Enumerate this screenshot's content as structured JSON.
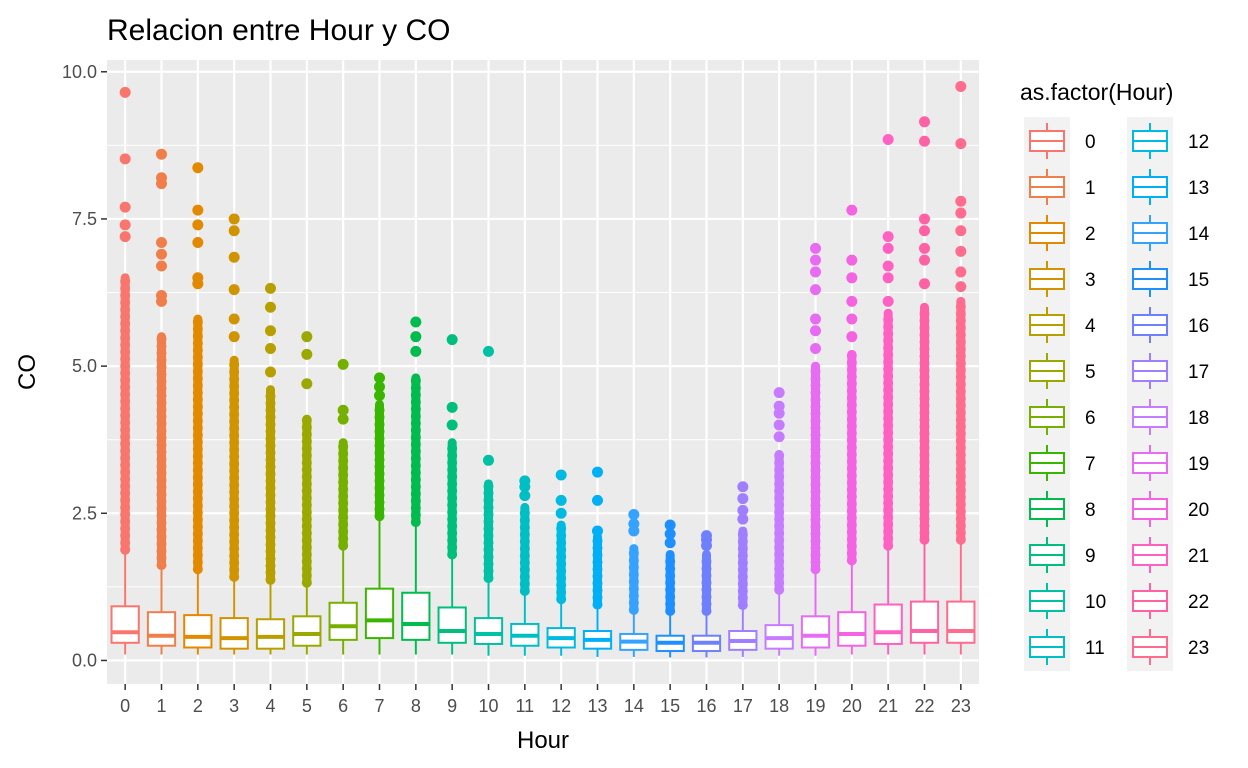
{
  "chart_data": {
    "type": "boxplot",
    "title": "Relacion entre Hour y CO",
    "xlabel": "Hour",
    "ylabel": "CO",
    "ylim": [
      -0.4,
      10.2
    ],
    "yticks": [
      "0.0",
      "2.5",
      "5.0",
      "7.5",
      "10.0"
    ],
    "ytick_values": [
      0,
      2.5,
      5,
      7.5,
      10
    ],
    "grid": true,
    "legend_title": "as.factor(Hour)",
    "legend_position": "right",
    "categories": [
      "0",
      "1",
      "2",
      "3",
      "4",
      "5",
      "6",
      "7",
      "8",
      "9",
      "10",
      "11",
      "12",
      "13",
      "14",
      "15",
      "16",
      "17",
      "18",
      "19",
      "20",
      "21",
      "22",
      "23"
    ],
    "colors": [
      "#F8766D",
      "#F07E4B",
      "#E38900",
      "#D09400",
      "#B79F00",
      "#9AA800",
      "#75AF00",
      "#39B600",
      "#00BB4E",
      "#00BF7D",
      "#00C1A3",
      "#00BFC4",
      "#00BAE0",
      "#00B0F6",
      "#35A2FF",
      "#1E8FFF",
      "#6F80FF",
      "#9F7FFF",
      "#C77CFF",
      "#E76BF3",
      "#F464E2",
      "#FF61C3",
      "#FF62A4",
      "#FF6C8E"
    ],
    "series": [
      {
        "min": 0.1,
        "q1": 0.3,
        "median": 0.48,
        "q3": 0.92,
        "whisker_high": 1.85,
        "outlier_low": 1.88,
        "outlier_high": 6.5,
        "extreme_outliers": [
          7.2,
          7.4,
          7.7,
          8.52,
          9.65
        ]
      },
      {
        "min": 0.1,
        "q1": 0.25,
        "median": 0.42,
        "q3": 0.82,
        "whisker_high": 1.58,
        "outlier_low": 1.62,
        "outlier_high": 5.5,
        "extreme_outliers": [
          6.1,
          6.2,
          6.7,
          6.9,
          7.1,
          8.1,
          8.2,
          8.6
        ]
      },
      {
        "min": 0.1,
        "q1": 0.22,
        "median": 0.4,
        "q3": 0.77,
        "whisker_high": 1.52,
        "outlier_low": 1.55,
        "outlier_high": 5.8,
        "extreme_outliers": [
          6.4,
          6.5,
          7.1,
          7.4,
          7.65,
          8.37
        ]
      },
      {
        "min": 0.1,
        "q1": 0.2,
        "median": 0.38,
        "q3": 0.72,
        "whisker_high": 1.38,
        "outlier_low": 1.42,
        "outlier_high": 5.1,
        "extreme_outliers": [
          5.5,
          5.8,
          6.3,
          6.85,
          7.3,
          7.5
        ]
      },
      {
        "min": 0.1,
        "q1": 0.2,
        "median": 0.4,
        "q3": 0.7,
        "whisker_high": 1.33,
        "outlier_low": 1.37,
        "outlier_high": 4.6,
        "extreme_outliers": [
          4.9,
          5.3,
          5.6,
          6.0,
          6.32
        ]
      },
      {
        "min": 0.1,
        "q1": 0.25,
        "median": 0.45,
        "q3": 0.75,
        "whisker_high": 1.28,
        "outlier_low": 1.32,
        "outlier_high": 4.1,
        "extreme_outliers": [
          4.7,
          5.2,
          5.5
        ]
      },
      {
        "min": 0.1,
        "q1": 0.35,
        "median": 0.58,
        "q3": 0.98,
        "whisker_high": 1.9,
        "outlier_low": 1.95,
        "outlier_high": 3.7,
        "extreme_outliers": [
          4.1,
          4.25,
          5.03
        ]
      },
      {
        "min": 0.1,
        "q1": 0.38,
        "median": 0.68,
        "q3": 1.22,
        "whisker_high": 2.4,
        "outlier_low": 2.45,
        "outlier_high": 4.35,
        "extreme_outliers": [
          4.5,
          4.65,
          4.8
        ]
      },
      {
        "min": 0.1,
        "q1": 0.35,
        "median": 0.62,
        "q3": 1.15,
        "whisker_high": 2.3,
        "outlier_low": 2.35,
        "outlier_high": 4.8,
        "extreme_outliers": [
          5.25,
          5.5,
          5.75
        ]
      },
      {
        "min": 0.1,
        "q1": 0.3,
        "median": 0.5,
        "q3": 0.9,
        "whisker_high": 1.75,
        "outlier_low": 1.8,
        "outlier_high": 3.7,
        "extreme_outliers": [
          4.0,
          4.3,
          5.45
        ]
      },
      {
        "min": 0.08,
        "q1": 0.28,
        "median": 0.45,
        "q3": 0.72,
        "whisker_high": 1.35,
        "outlier_low": 1.4,
        "outlier_high": 3.0,
        "extreme_outliers": [
          3.4,
          5.25
        ]
      },
      {
        "min": 0.08,
        "q1": 0.25,
        "median": 0.42,
        "q3": 0.62,
        "whisker_high": 1.15,
        "outlier_low": 1.18,
        "outlier_high": 2.6,
        "extreme_outliers": [
          2.8,
          2.95,
          3.05
        ]
      },
      {
        "min": 0.08,
        "q1": 0.22,
        "median": 0.38,
        "q3": 0.55,
        "whisker_high": 1.0,
        "outlier_low": 1.04,
        "outlier_high": 2.3,
        "extreme_outliers": [
          2.5,
          2.72,
          3.15
        ]
      },
      {
        "min": 0.06,
        "q1": 0.2,
        "median": 0.35,
        "q3": 0.5,
        "whisker_high": 0.9,
        "outlier_low": 0.95,
        "outlier_high": 2.1,
        "extreme_outliers": [
          2.2,
          2.72,
          3.2
        ]
      },
      {
        "min": 0.06,
        "q1": 0.18,
        "median": 0.32,
        "q3": 0.45,
        "whisker_high": 0.82,
        "outlier_low": 0.86,
        "outlier_high": 1.9,
        "extreme_outliers": [
          2.2,
          2.32,
          2.48
        ]
      },
      {
        "min": 0.05,
        "q1": 0.16,
        "median": 0.3,
        "q3": 0.42,
        "whisker_high": 0.8,
        "outlier_low": 0.84,
        "outlier_high": 1.8,
        "extreme_outliers": [
          2.0,
          2.15,
          2.3
        ]
      },
      {
        "min": 0.05,
        "q1": 0.16,
        "median": 0.3,
        "q3": 0.42,
        "whisker_high": 0.8,
        "outlier_low": 0.84,
        "outlier_high": 1.8,
        "extreme_outliers": [
          1.95,
          2.05,
          2.12
        ]
      },
      {
        "min": 0.06,
        "q1": 0.18,
        "median": 0.33,
        "q3": 0.5,
        "whisker_high": 0.9,
        "outlier_low": 0.94,
        "outlier_high": 2.2,
        "extreme_outliers": [
          2.4,
          2.55,
          2.75,
          2.95
        ]
      },
      {
        "min": 0.08,
        "q1": 0.2,
        "median": 0.38,
        "q3": 0.6,
        "whisker_high": 1.15,
        "outlier_low": 1.2,
        "outlier_high": 3.5,
        "extreme_outliers": [
          3.8,
          4.0,
          4.2,
          4.32,
          4.55
        ]
      },
      {
        "min": 0.08,
        "q1": 0.22,
        "median": 0.42,
        "q3": 0.75,
        "whisker_high": 1.5,
        "outlier_low": 1.55,
        "outlier_high": 5.0,
        "extreme_outliers": [
          5.3,
          5.6,
          5.8,
          6.3,
          6.6,
          6.8,
          7.0
        ]
      },
      {
        "min": 0.1,
        "q1": 0.25,
        "median": 0.45,
        "q3": 0.82,
        "whisker_high": 1.65,
        "outlier_low": 1.7,
        "outlier_high": 5.2,
        "extreme_outliers": [
          5.5,
          5.8,
          6.1,
          6.5,
          6.8,
          7.65
        ]
      },
      {
        "min": 0.1,
        "q1": 0.28,
        "median": 0.48,
        "q3": 0.95,
        "whisker_high": 1.9,
        "outlier_low": 1.95,
        "outlier_high": 5.9,
        "extreme_outliers": [
          6.1,
          6.5,
          6.7,
          7.0,
          7.2,
          8.85
        ]
      },
      {
        "min": 0.1,
        "q1": 0.3,
        "median": 0.5,
        "q3": 1.0,
        "whisker_high": 2.0,
        "outlier_low": 2.05,
        "outlier_high": 6.0,
        "extreme_outliers": [
          6.4,
          6.8,
          7.0,
          7.3,
          7.5,
          8.82,
          9.15
        ]
      },
      {
        "min": 0.1,
        "q1": 0.3,
        "median": 0.5,
        "q3": 1.0,
        "whisker_high": 2.0,
        "outlier_low": 2.05,
        "outlier_high": 6.1,
        "extreme_outliers": [
          6.35,
          6.6,
          6.95,
          7.3,
          7.6,
          7.8,
          8.78,
          9.75
        ]
      }
    ]
  }
}
